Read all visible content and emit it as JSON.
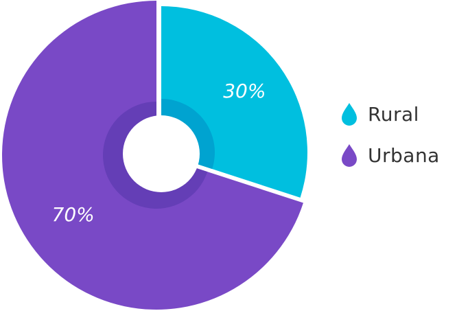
{
  "chart_data": {
    "type": "pie",
    "variant": "exploded-donut",
    "slices": [
      {
        "name": "Rural",
        "value": 30,
        "label": "30%",
        "color": "#00BFDF",
        "inner_ring_color": "#00A3D0"
      },
      {
        "name": "Urbana",
        "value": 70,
        "label": "70%",
        "color": "#7949C6",
        "inner_ring_color": "#643EB6"
      }
    ],
    "legend_position": "right",
    "legend_icon": "water-drop-icon"
  }
}
